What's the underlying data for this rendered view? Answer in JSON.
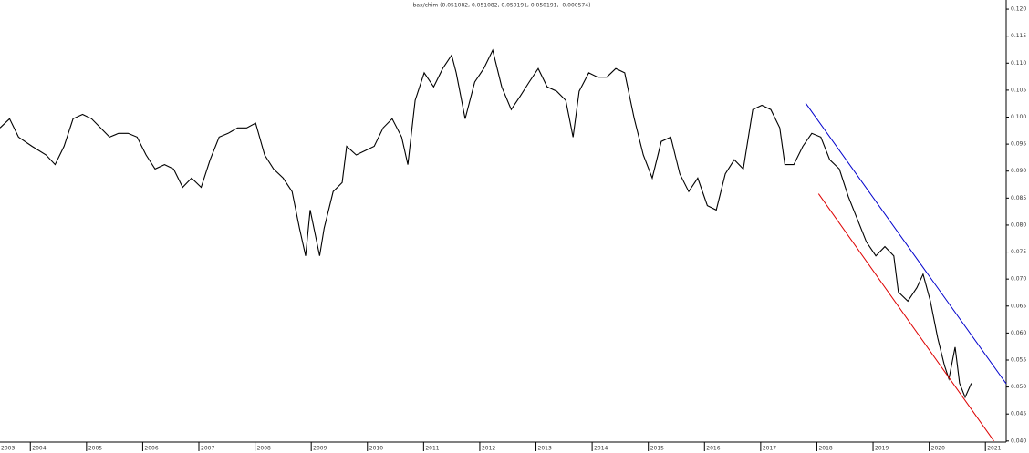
{
  "chart_data": {
    "type": "line",
    "title": "bax/chim (0.051082, 0.051082, 0.050191, 0.050191, -0.000574)",
    "x": [
      2003.46,
      2003.63,
      2003.79,
      2004.03,
      2004.28,
      2004.44,
      2004.6,
      2004.76,
      2004.93,
      2005.09,
      2005.25,
      2005.41,
      2005.57,
      2005.74,
      2005.9,
      2006.06,
      2006.22,
      2006.39,
      2006.55,
      2006.71,
      2006.87,
      2007.04,
      2007.2,
      2007.36,
      2007.52,
      2007.69,
      2007.85,
      2008.01,
      2008.17,
      2008.33,
      2008.5,
      2008.66,
      2008.79,
      2008.9,
      2008.98,
      2009.15,
      2009.23,
      2009.39,
      2009.55,
      2009.63,
      2009.8,
      2009.96,
      2010.12,
      2010.28,
      2010.44,
      2010.61,
      2010.72,
      2010.85,
      2011.01,
      2011.18,
      2011.34,
      2011.5,
      2011.58,
      2011.74,
      2011.91,
      2012.07,
      2012.23,
      2012.39,
      2012.56,
      2012.72,
      2012.88,
      2013.04,
      2013.2,
      2013.37,
      2013.53,
      2013.66,
      2013.77,
      2013.94,
      2014.1,
      2014.26,
      2014.42,
      2014.58,
      2014.75,
      2014.91,
      2015.07,
      2015.23,
      2015.4,
      2015.56,
      2015.72,
      2015.88,
      2016.05,
      2016.21,
      2016.37,
      2016.53,
      2016.69,
      2016.86,
      2017.02,
      2017.18,
      2017.34,
      2017.43,
      2017.59,
      2017.75,
      2017.91,
      2018.07,
      2018.23,
      2018.4,
      2018.56,
      2018.72,
      2018.88,
      2019.05,
      2019.21,
      2019.37,
      2019.45,
      2019.62,
      2019.78,
      2019.89,
      2020.02,
      2020.15,
      2020.27,
      2020.35,
      2020.46,
      2020.54,
      2020.64,
      2020.75
    ],
    "series": [
      {
        "color": "#000000",
        "values": [
          0.098,
          0.0997,
          0.0963,
          0.0946,
          0.093,
          0.0912,
          0.0946,
          0.0997,
          0.1005,
          0.0997,
          0.098,
          0.0963,
          0.097,
          0.097,
          0.0963,
          0.093,
          0.0904,
          0.0912,
          0.0904,
          0.087,
          0.0887,
          0.087,
          0.0921,
          0.0963,
          0.097,
          0.098,
          0.098,
          0.0989,
          0.093,
          0.0904,
          0.0887,
          0.0862,
          0.0794,
          0.0743,
          0.0828,
          0.0743,
          0.0794,
          0.0862,
          0.0879,
          0.0946,
          0.093,
          0.0938,
          0.0946,
          0.098,
          0.0997,
          0.0963,
          0.0912,
          0.1031,
          0.1082,
          0.1056,
          0.109,
          0.1115,
          0.1082,
          0.0997,
          0.1065,
          0.109,
          0.1124,
          0.1056,
          0.1014,
          0.1039,
          0.1065,
          0.109,
          0.1056,
          0.1048,
          0.1031,
          0.0963,
          0.1048,
          0.1082,
          0.1074,
          0.1074,
          0.109,
          0.1082,
          0.0997,
          0.093,
          0.0887,
          0.0955,
          0.0963,
          0.0895,
          0.0862,
          0.0887,
          0.0836,
          0.0828,
          0.0895,
          0.0921,
          0.0904,
          0.1014,
          0.1022,
          0.1014,
          0.098,
          0.0912,
          0.0912,
          0.0946,
          0.097,
          0.0963,
          0.0921,
          0.0904,
          0.0853,
          0.0811,
          0.0769,
          0.0743,
          0.076,
          0.0743,
          0.0676,
          0.0659,
          0.0684,
          0.0709,
          0.0659,
          0.0591,
          0.054,
          0.0515,
          0.0574,
          0.0507,
          0.0481,
          0.0507
        ]
      }
    ],
    "trendlines": [
      {
        "color": "#0000cc",
        "x": [
          2017.8,
          2021.37
        ],
        "values": [
          0.1026,
          0.0506
        ]
      },
      {
        "color": "#dd0000",
        "x": [
          2018.03,
          2021.15
        ],
        "values": [
          0.0858,
          0.04
        ]
      }
    ],
    "xlim": [
      2003.46,
      2021.37
    ],
    "ylim": [
      0.0398,
      0.1217
    ],
    "xticks": [
      2003,
      2004,
      2005,
      2006,
      2007,
      2008,
      2009,
      2010,
      2011,
      2012,
      2013,
      2014,
      2015,
      2016,
      2017,
      2018,
      2019,
      2020,
      2021
    ],
    "yticks": [
      {
        "value": 0.04,
        "label": "0.040"
      },
      {
        "value": 0.045,
        "label": "0.045"
      },
      {
        "value": 0.05,
        "label": "0.050"
      },
      {
        "value": 0.055,
        "label": "0.055"
      },
      {
        "value": 0.06,
        "label": "0.060"
      },
      {
        "value": 0.065,
        "label": "0.065"
      },
      {
        "value": 0.07,
        "label": "0.070"
      },
      {
        "value": 0.075,
        "label": "0.075"
      },
      {
        "value": 0.08,
        "label": "0.080"
      },
      {
        "value": 0.085,
        "label": "0.085"
      },
      {
        "value": 0.09,
        "label": "0.090"
      },
      {
        "value": 0.095,
        "label": "0.095"
      },
      {
        "value": 0.1,
        "label": "0.100"
      },
      {
        "value": 0.105,
        "label": "0.105"
      },
      {
        "value": 0.11,
        "label": "0.110"
      },
      {
        "value": 0.115,
        "label": "0.115"
      },
      {
        "value": 0.12,
        "label": "0.120"
      }
    ]
  }
}
